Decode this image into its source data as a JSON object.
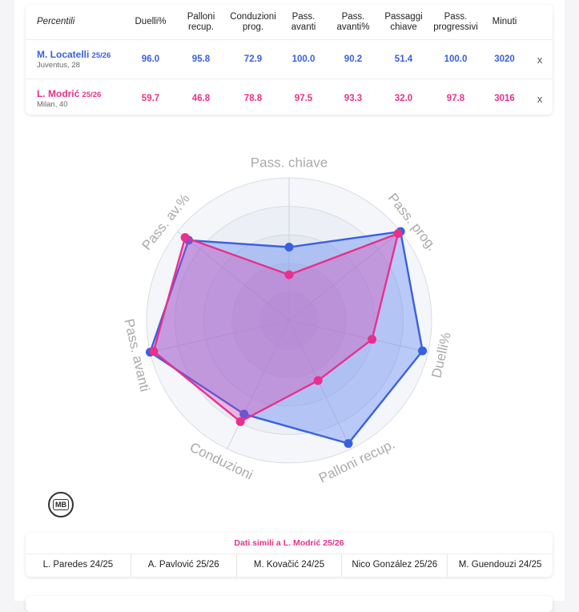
{
  "table": {
    "header_first": "Percentili",
    "columns": [
      "Duelli%",
      "Palloni\nrecup.",
      "Conduzioni\nprog.",
      "Pass.\navanti",
      "Pass.\navanti%",
      "Passaggi\nchiave",
      "Pass.\nprogressivi",
      "Minuti"
    ],
    "remove_label": "x",
    "rows": [
      {
        "name": "M. Locatelli",
        "season": "25/26",
        "team": "Juventus, 28",
        "values": [
          "96.0",
          "95.8",
          "72.9",
          "100.0",
          "90.2",
          "51.4",
          "100.0",
          "3020"
        ]
      },
      {
        "name": "L. Modrić",
        "season": "25/26",
        "team": "Milan, 40",
        "values": [
          "59.7",
          "46.8",
          "78.8",
          "97.5",
          "93.3",
          "32.0",
          "97.8",
          "3016"
        ]
      }
    ]
  },
  "colors": {
    "locatelli": "#3a60e0",
    "modric": "#e8308c"
  },
  "chart_data": {
    "type": "radar",
    "axes": [
      "Pass. chiave",
      "Pass. prog.",
      "Duelli%",
      "Palloni recup.",
      "Conduzioni",
      "Pass. avanti",
      "Pass. av.%"
    ],
    "range": [
      0,
      100
    ],
    "series": [
      {
        "name": "M. Locatelli",
        "values": [
          51.4,
          100.0,
          96.0,
          95.8,
          72.9,
          100.0,
          90.2
        ]
      },
      {
        "name": "L. Modrić",
        "values": [
          32.0,
          97.8,
          59.7,
          46.8,
          78.8,
          97.5,
          93.3
        ]
      }
    ]
  },
  "logo_text": "MB",
  "similar": {
    "title": "Dati simili a L. Modrić 25/26",
    "items": [
      "L. Paredes 24/25",
      "A. Pavlović 25/26",
      "M. Kovačić 24/25",
      "Nico González 25/26",
      "M. Guendouzi 24/25"
    ]
  }
}
